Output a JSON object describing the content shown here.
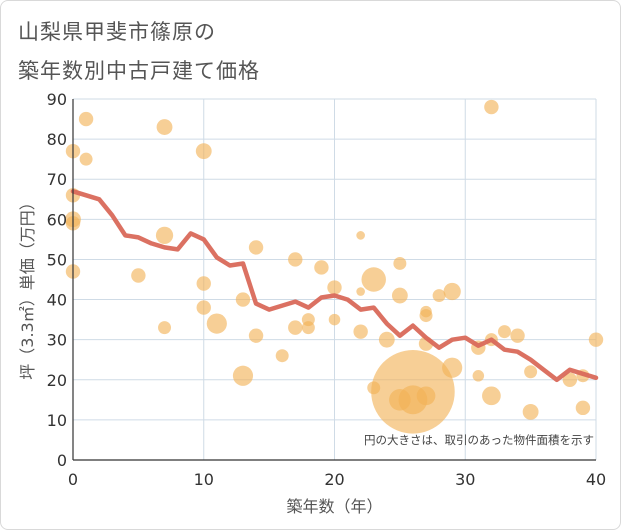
{
  "title": {
    "line1": "山梨県甲斐市篠原の",
    "line2": "築年数別中古戸建て価格"
  },
  "chart_data": {
    "type": "scatter",
    "title": "山梨県甲斐市篠原の築年数別中古戸建て価格",
    "xlabel": "築年数（年）",
    "ylabel": "坪（3.3㎡）単価（万円）",
    "xlim": [
      0,
      40
    ],
    "ylim": [
      0,
      90
    ],
    "xticks": [
      0,
      10,
      20,
      30,
      40
    ],
    "yticks": [
      0,
      10,
      20,
      30,
      40,
      50,
      60,
      70,
      80,
      90
    ],
    "grid": true,
    "note": "円の大きさは、取引のあった物件面積を示す",
    "colors": {
      "bubble": "#f2b155",
      "line": "#d9695a",
      "grid": "#cfdbe6"
    },
    "points": [
      {
        "x": 0,
        "y": 77,
        "s": 1
      },
      {
        "x": 0,
        "y": 66,
        "s": 1
      },
      {
        "x": 0,
        "y": 60,
        "s": 1.1
      },
      {
        "x": 0,
        "y": 59,
        "s": 1
      },
      {
        "x": 0,
        "y": 47,
        "s": 1
      },
      {
        "x": 1,
        "y": 85,
        "s": 1
      },
      {
        "x": 1,
        "y": 75,
        "s": 0.9
      },
      {
        "x": 5,
        "y": 46,
        "s": 1
      },
      {
        "x": 7,
        "y": 83,
        "s": 1.1
      },
      {
        "x": 7,
        "y": 56,
        "s": 1.2
      },
      {
        "x": 7,
        "y": 33,
        "s": 0.9
      },
      {
        "x": 10,
        "y": 77,
        "s": 1.1
      },
      {
        "x": 10,
        "y": 44,
        "s": 1
      },
      {
        "x": 10,
        "y": 38,
        "s": 1
      },
      {
        "x": 11,
        "y": 34,
        "s": 1.4
      },
      {
        "x": 13,
        "y": 40,
        "s": 1
      },
      {
        "x": 13,
        "y": 21,
        "s": 1.4
      },
      {
        "x": 14,
        "y": 53,
        "s": 1
      },
      {
        "x": 14,
        "y": 31,
        "s": 1
      },
      {
        "x": 16,
        "y": 26,
        "s": 0.9
      },
      {
        "x": 17,
        "y": 50,
        "s": 1
      },
      {
        "x": 17,
        "y": 33,
        "s": 1
      },
      {
        "x": 18,
        "y": 35,
        "s": 0.9
      },
      {
        "x": 18,
        "y": 33,
        "s": 0.9
      },
      {
        "x": 19,
        "y": 48,
        "s": 1
      },
      {
        "x": 20,
        "y": 43,
        "s": 1
      },
      {
        "x": 20,
        "y": 35,
        "s": 0.8
      },
      {
        "x": 22,
        "y": 56,
        "s": 0.6
      },
      {
        "x": 22,
        "y": 42,
        "s": 0.6
      },
      {
        "x": 22,
        "y": 32,
        "s": 1
      },
      {
        "x": 23,
        "y": 45,
        "s": 1.7
      },
      {
        "x": 23,
        "y": 18,
        "s": 0.9
      },
      {
        "x": 24,
        "y": 30,
        "s": 1.1
      },
      {
        "x": 25,
        "y": 49,
        "s": 0.9
      },
      {
        "x": 25,
        "y": 41,
        "s": 1.1
      },
      {
        "x": 25,
        "y": 15,
        "s": 1.5
      },
      {
        "x": 26,
        "y": 17,
        "s": 5.8
      },
      {
        "x": 26,
        "y": 15,
        "s": 2
      },
      {
        "x": 27,
        "y": 37,
        "s": 0.8
      },
      {
        "x": 27,
        "y": 36,
        "s": 0.9
      },
      {
        "x": 27,
        "y": 29,
        "s": 1
      },
      {
        "x": 27,
        "y": 16,
        "s": 1.3
      },
      {
        "x": 28,
        "y": 41,
        "s": 0.9
      },
      {
        "x": 29,
        "y": 42,
        "s": 1.2
      },
      {
        "x": 29,
        "y": 23,
        "s": 1.4
      },
      {
        "x": 31,
        "y": 28,
        "s": 1
      },
      {
        "x": 31,
        "y": 21,
        "s": 0.8
      },
      {
        "x": 32,
        "y": 88,
        "s": 1
      },
      {
        "x": 32,
        "y": 30,
        "s": 0.9
      },
      {
        "x": 32,
        "y": 16,
        "s": 1.3
      },
      {
        "x": 33,
        "y": 32,
        "s": 0.9
      },
      {
        "x": 34,
        "y": 31,
        "s": 1
      },
      {
        "x": 35,
        "y": 22,
        "s": 0.9
      },
      {
        "x": 35,
        "y": 12,
        "s": 1.1
      },
      {
        "x": 38,
        "y": 20,
        "s": 1
      },
      {
        "x": 39,
        "y": 21,
        "s": 0.9
      },
      {
        "x": 39,
        "y": 13,
        "s": 1
      },
      {
        "x": 40,
        "y": 30,
        "s": 1
      }
    ],
    "trend": {
      "x": [
        0,
        1,
        2,
        3,
        4,
        5,
        6,
        7,
        8,
        9,
        10,
        11,
        12,
        13,
        14,
        15,
        16,
        17,
        18,
        19,
        20,
        21,
        22,
        23,
        24,
        25,
        26,
        27,
        28,
        29,
        30,
        31,
        32,
        33,
        34,
        35,
        36,
        37,
        38,
        39,
        40
      ],
      "y": [
        67,
        66,
        65,
        61,
        56,
        55.5,
        54,
        53,
        52.5,
        56.5,
        55,
        50.5,
        48.5,
        49,
        39,
        37.5,
        38.5,
        39.5,
        38,
        40.5,
        41,
        40,
        37.5,
        38,
        34,
        31,
        33.5,
        30.5,
        28,
        30,
        30.5,
        28.5,
        30,
        27.5,
        27,
        25,
        22.5,
        20,
        22.5,
        21.5,
        20.5
      ]
    }
  }
}
